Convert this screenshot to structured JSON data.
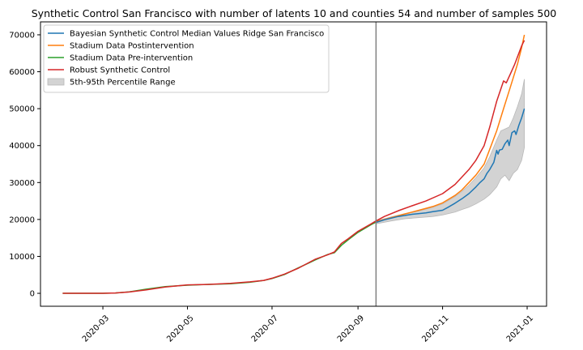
{
  "chart_data": {
    "type": "line",
    "title": "Synthetic Control San Francisco with number of latents 10 and counties 54 and number of samples 500",
    "xlabel": "",
    "ylabel": "",
    "xlim": [
      "2020-01-16",
      "2021-01-15"
    ],
    "ylim": [
      -3500,
      73500
    ],
    "x_ticks": [
      "2020-03",
      "2020-05",
      "2020-07",
      "2020-09",
      "2020-11",
      "2021-01"
    ],
    "y_ticks": [
      0,
      10000,
      20000,
      30000,
      40000,
      50000,
      60000,
      70000
    ],
    "intervention_date": "2020-09-14",
    "grid": false,
    "legend_position": "top-left",
    "series": [
      {
        "name": "Bayesian Synthetic Control Median Values Ridge San Francisco",
        "color": "#1f77b4",
        "points": [
          [
            "2020-09-14",
            19200
          ],
          [
            "2020-09-20",
            19900
          ],
          [
            "2020-09-30",
            20800
          ],
          [
            "2020-10-10",
            21400
          ],
          [
            "2020-10-20",
            21800
          ],
          [
            "2020-10-25",
            22100
          ],
          [
            "2020-11-01",
            22500
          ],
          [
            "2020-11-05",
            23300
          ],
          [
            "2020-11-10",
            24400
          ],
          [
            "2020-11-15",
            25600
          ],
          [
            "2020-11-20",
            27000
          ],
          [
            "2020-11-25",
            28800
          ],
          [
            "2020-11-28",
            30000
          ],
          [
            "2020-12-01",
            31000
          ],
          [
            "2020-12-03",
            32500
          ],
          [
            "2020-12-05",
            33500
          ],
          [
            "2020-12-08",
            35500
          ],
          [
            "2020-12-10",
            38700
          ],
          [
            "2020-12-11",
            37700
          ],
          [
            "2020-12-12",
            38800
          ],
          [
            "2020-12-14",
            39000
          ],
          [
            "2020-12-16",
            40500
          ],
          [
            "2020-12-18",
            41500
          ],
          [
            "2020-12-19",
            40000
          ],
          [
            "2020-12-21",
            43500
          ],
          [
            "2020-12-23",
            44000
          ],
          [
            "2020-12-24",
            43000
          ],
          [
            "2020-12-26",
            45500
          ],
          [
            "2020-12-28",
            47500
          ],
          [
            "2020-12-30",
            50000
          ]
        ]
      },
      {
        "name": "Stadium Data Postintervention",
        "color": "#ff7f0e",
        "points": [
          [
            "2020-09-14",
            19400
          ],
          [
            "2020-09-25",
            20500
          ],
          [
            "2020-10-05",
            21500
          ],
          [
            "2020-10-15",
            22500
          ],
          [
            "2020-10-25",
            23500
          ],
          [
            "2020-11-01",
            24500
          ],
          [
            "2020-11-10",
            26500
          ],
          [
            "2020-11-15",
            28000
          ],
          [
            "2020-11-20",
            30000
          ],
          [
            "2020-11-25",
            32000
          ],
          [
            "2020-12-01",
            35000
          ],
          [
            "2020-12-05",
            39000
          ],
          [
            "2020-12-10",
            44000
          ],
          [
            "2020-12-15",
            50000
          ],
          [
            "2020-12-20",
            56000
          ],
          [
            "2020-12-25",
            62000
          ],
          [
            "2020-12-28",
            66500
          ],
          [
            "2020-12-30",
            70000
          ]
        ]
      },
      {
        "name": "Stadium Data Pre-intervention",
        "color": "#2ca02c",
        "points": [
          [
            "2020-02-01",
            0
          ],
          [
            "2020-02-15",
            0
          ],
          [
            "2020-03-01",
            0
          ],
          [
            "2020-03-10",
            100
          ],
          [
            "2020-03-20",
            400
          ],
          [
            "2020-04-01",
            1100
          ],
          [
            "2020-04-15",
            1800
          ],
          [
            "2020-05-01",
            2200
          ],
          [
            "2020-05-15",
            2400
          ],
          [
            "2020-06-01",
            2600
          ],
          [
            "2020-06-15",
            3000
          ],
          [
            "2020-06-25",
            3500
          ],
          [
            "2020-07-01",
            4000
          ],
          [
            "2020-07-10",
            5100
          ],
          [
            "2020-07-20",
            6900
          ],
          [
            "2020-08-01",
            9000
          ],
          [
            "2020-08-10",
            10500
          ],
          [
            "2020-08-15",
            11000
          ],
          [
            "2020-08-20",
            13000
          ],
          [
            "2020-08-25",
            14500
          ],
          [
            "2020-09-01",
            16500
          ],
          [
            "2020-09-10",
            18500
          ],
          [
            "2020-09-14",
            19300
          ]
        ]
      },
      {
        "name": "Robust Synthetic Control",
        "color": "#d62728",
        "points": [
          [
            "2020-02-01",
            0
          ],
          [
            "2020-02-15",
            0
          ],
          [
            "2020-03-01",
            0
          ],
          [
            "2020-03-10",
            100
          ],
          [
            "2020-03-20",
            350
          ],
          [
            "2020-04-01",
            900
          ],
          [
            "2020-04-15",
            1700
          ],
          [
            "2020-05-01",
            2300
          ],
          [
            "2020-05-15",
            2400
          ],
          [
            "2020-06-01",
            2700
          ],
          [
            "2020-06-15",
            3100
          ],
          [
            "2020-06-25",
            3500
          ],
          [
            "2020-07-01",
            4100
          ],
          [
            "2020-07-10",
            5200
          ],
          [
            "2020-07-20",
            6800
          ],
          [
            "2020-08-01",
            9200
          ],
          [
            "2020-08-10",
            10400
          ],
          [
            "2020-08-15",
            11200
          ],
          [
            "2020-08-20",
            13500
          ],
          [
            "2020-08-25",
            14800
          ],
          [
            "2020-09-01",
            16800
          ],
          [
            "2020-09-10",
            18700
          ],
          [
            "2020-09-14",
            19600
          ],
          [
            "2020-09-20",
            20800
          ],
          [
            "2020-10-01",
            22500
          ],
          [
            "2020-10-10",
            23700
          ],
          [
            "2020-10-20",
            25000
          ],
          [
            "2020-11-01",
            27000
          ],
          [
            "2020-11-10",
            29500
          ],
          [
            "2020-11-20",
            33500
          ],
          [
            "2020-11-25",
            36000
          ],
          [
            "2020-12-01",
            40000
          ],
          [
            "2020-12-05",
            45000
          ],
          [
            "2020-12-10",
            52000
          ],
          [
            "2020-12-15",
            57500
          ],
          [
            "2020-12-17",
            57000
          ],
          [
            "2020-12-20",
            59500
          ],
          [
            "2020-12-23",
            62000
          ],
          [
            "2020-12-26",
            65000
          ],
          [
            "2020-12-28",
            67000
          ],
          [
            "2020-12-30",
            68500
          ]
        ]
      }
    ],
    "band": {
      "name": "5th-95th Percentile Range",
      "color": "#d3d3d3",
      "points": [
        [
          "2020-09-14",
          18800,
          19600
        ],
        [
          "2020-09-25",
          19600,
          20700
        ],
        [
          "2020-10-05",
          20200,
          21600
        ],
        [
          "2020-10-15",
          20500,
          22300
        ],
        [
          "2020-10-25",
          20800,
          23300
        ],
        [
          "2020-11-01",
          21200,
          24200
        ],
        [
          "2020-11-10",
          22000,
          26200
        ],
        [
          "2020-11-15",
          22700,
          27600
        ],
        [
          "2020-11-20",
          23300,
          29300
        ],
        [
          "2020-11-25",
          24200,
          31300
        ],
        [
          "2020-12-01",
          25500,
          34000
        ],
        [
          "2020-12-05",
          26700,
          37000
        ],
        [
          "2020-12-10",
          28800,
          41500
        ],
        [
          "2020-12-13",
          31000,
          44000
        ],
        [
          "2020-12-16",
          32000,
          44500
        ],
        [
          "2020-12-19",
          30500,
          45000
        ],
        [
          "2020-12-22",
          32500,
          47500
        ],
        [
          "2020-12-25",
          33500,
          50500
        ],
        [
          "2020-12-28",
          36000,
          54000
        ],
        [
          "2020-12-30",
          39500,
          58000
        ]
      ]
    }
  }
}
